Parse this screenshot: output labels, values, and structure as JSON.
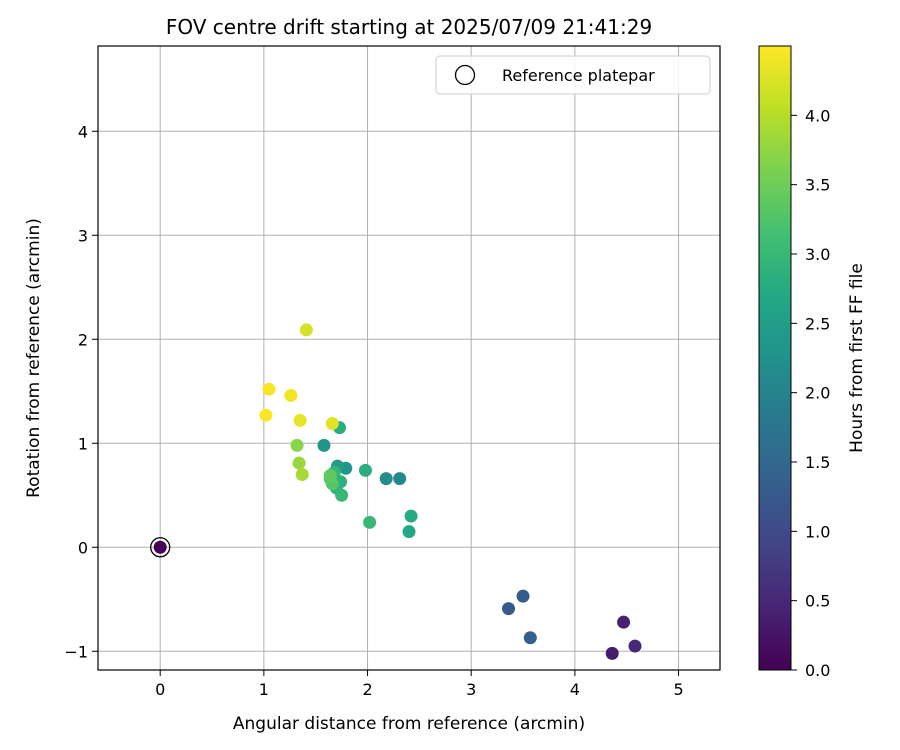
{
  "chart_data": {
    "type": "scatter",
    "title": "FOV centre drift starting at 2025/07/09 21:41:29",
    "xlabel": "Angular distance from reference (arcmin)",
    "ylabel": "Rotation from reference (arcmin)",
    "xlim": [
      -0.6,
      5.4
    ],
    "ylim": [
      -1.18,
      4.82
    ],
    "xticks": [
      0,
      1,
      2,
      3,
      4,
      5
    ],
    "yticks": [
      -1,
      0,
      1,
      2,
      3,
      4
    ],
    "grid": true,
    "legend": {
      "position": "top-right",
      "entries": [
        "Reference platepar"
      ]
    },
    "reference": {
      "x": 0.0,
      "y": 0.0,
      "label": "Reference platepar"
    },
    "colorbar": {
      "label": "Hours from first FF file",
      "colormap": "viridis",
      "range": [
        0.0,
        4.5
      ],
      "ticks": [
        0.0,
        0.5,
        1.0,
        1.5,
        2.0,
        2.5,
        3.0,
        3.5,
        4.0
      ],
      "tick_labels": [
        "0.0",
        "0.5",
        "1.0",
        "1.5",
        "2.0",
        "2.5",
        "3.0",
        "3.5",
        "4.0"
      ]
    },
    "points": [
      {
        "x": 0.0,
        "y": 0.0,
        "c": 0.0
      },
      {
        "x": 4.36,
        "y": -1.02,
        "c": 0.35
      },
      {
        "x": 4.47,
        "y": -0.72,
        "c": 0.4
      },
      {
        "x": 4.58,
        "y": -0.95,
        "c": 0.5
      },
      {
        "x": 3.36,
        "y": -0.59,
        "c": 1.25
      },
      {
        "x": 3.5,
        "y": -0.47,
        "c": 1.3
      },
      {
        "x": 3.57,
        "y": -0.87,
        "c": 1.35
      },
      {
        "x": 2.31,
        "y": 0.66,
        "c": 2.1
      },
      {
        "x": 2.18,
        "y": 0.66,
        "c": 2.2
      },
      {
        "x": 1.58,
        "y": 0.98,
        "c": 2.3
      },
      {
        "x": 1.79,
        "y": 0.76,
        "c": 2.35
      },
      {
        "x": 1.71,
        "y": 0.78,
        "c": 2.5
      },
      {
        "x": 2.4,
        "y": 0.15,
        "c": 2.7
      },
      {
        "x": 2.42,
        "y": 0.3,
        "c": 2.75
      },
      {
        "x": 1.73,
        "y": 1.15,
        "c": 2.8
      },
      {
        "x": 1.98,
        "y": 0.74,
        "c": 2.8
      },
      {
        "x": 1.74,
        "y": 0.63,
        "c": 2.85
      },
      {
        "x": 1.7,
        "y": 0.57,
        "c": 2.9
      },
      {
        "x": 1.68,
        "y": 0.72,
        "c": 2.95
      },
      {
        "x": 2.02,
        "y": 0.24,
        "c": 3.0
      },
      {
        "x": 1.75,
        "y": 0.5,
        "c": 3.0
      },
      {
        "x": 1.64,
        "y": 0.66,
        "c": 3.2
      },
      {
        "x": 1.66,
        "y": 0.61,
        "c": 3.3
      },
      {
        "x": 1.64,
        "y": 0.69,
        "c": 3.4
      },
      {
        "x": 1.32,
        "y": 0.98,
        "c": 3.7
      },
      {
        "x": 1.34,
        "y": 0.81,
        "c": 3.8
      },
      {
        "x": 1.37,
        "y": 0.7,
        "c": 3.9
      },
      {
        "x": 1.41,
        "y": 2.09,
        "c": 4.2
      },
      {
        "x": 1.66,
        "y": 1.19,
        "c": 4.3
      },
      {
        "x": 1.35,
        "y": 1.22,
        "c": 4.35
      },
      {
        "x": 1.26,
        "y": 1.46,
        "c": 4.4
      },
      {
        "x": 1.05,
        "y": 1.52,
        "c": 4.45
      },
      {
        "x": 1.02,
        "y": 1.27,
        "c": 4.5
      }
    ]
  }
}
